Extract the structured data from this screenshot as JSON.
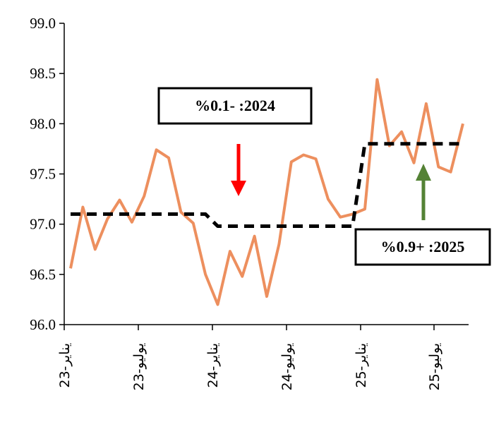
{
  "chart_data": {
    "type": "line",
    "title": "",
    "xlabel": "",
    "ylabel": "",
    "ylim": [
      96.0,
      99.0
    ],
    "yticks": [
      "96.0",
      "96.5",
      "97.0",
      "97.5",
      "98.0",
      "98.5",
      "99.0"
    ],
    "xtick_labels": [
      "23-يناير",
      "23-يوليو",
      "24-يناير",
      "24-يوليو",
      "25-يناير",
      "25-يوليو"
    ],
    "grid": false,
    "legend": "none",
    "series": [
      {
        "style": "solid",
        "color": "#ED8F5E",
        "values": [
          96.56,
          97.17,
          96.75,
          97.05,
          97.24,
          97.02,
          97.28,
          97.74,
          97.66,
          97.12,
          97.01,
          96.5,
          96.2,
          96.73,
          96.48,
          96.88,
          96.28,
          96.8,
          97.62,
          97.69,
          97.65,
          97.25,
          97.07,
          97.1,
          97.15,
          98.44,
          97.78,
          97.92,
          97.61,
          98.2,
          97.57,
          97.52,
          98.0
        ]
      },
      {
        "style": "dashed",
        "color": "#000000",
        "values": [
          97.1,
          97.1,
          97.1,
          97.1,
          97.1,
          97.1,
          97.1,
          97.1,
          97.1,
          97.1,
          97.1,
          97.1,
          96.98,
          96.98,
          96.98,
          96.98,
          96.98,
          96.98,
          96.98,
          96.98,
          96.98,
          96.98,
          96.98,
          96.98,
          97.8,
          97.8,
          97.8,
          97.8,
          97.8,
          97.8,
          97.8,
          97.8,
          97.8
        ]
      }
    ],
    "annotations": [
      {
        "text": "%0.1- :2024",
        "arrow_color": "#FF0000",
        "arrow_direction": "down"
      },
      {
        "text": "%0.9+ :2025",
        "arrow_color": "#548235",
        "arrow_direction": "up"
      }
    ]
  }
}
